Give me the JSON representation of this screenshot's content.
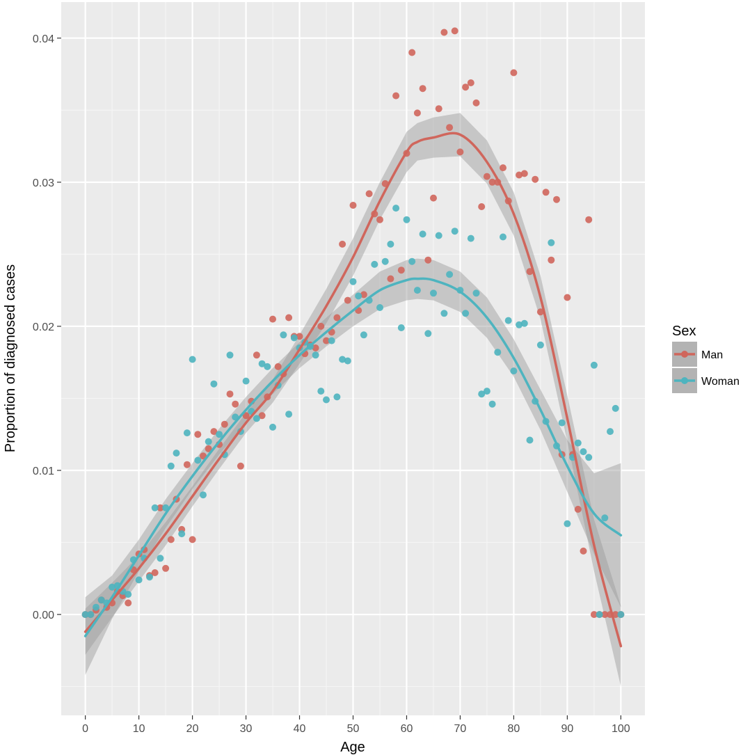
{
  "chart_data": {
    "type": "scatter",
    "xlabel": "Age",
    "ylabel": "Proportion of diagnosed cases",
    "xlim": [
      -4.5,
      104.5
    ],
    "ylim": [
      -0.007,
      0.0425
    ],
    "x_ticks": [
      0,
      10,
      20,
      30,
      40,
      50,
      60,
      70,
      80,
      90,
      100
    ],
    "x_tick_labels": [
      "0",
      "10",
      "20",
      "30",
      "40",
      "50",
      "60",
      "70",
      "80",
      "90",
      "100"
    ],
    "y_ticks": [
      0.0,
      0.01,
      0.02,
      0.03,
      0.04
    ],
    "y_tick_labels": [
      "0.00",
      "0.01",
      "0.02",
      "0.03",
      "0.04"
    ],
    "grid": true,
    "background": "#ebebeb",
    "legend": {
      "title": "Sex",
      "position": "right",
      "entries": [
        "Man",
        "Woman"
      ]
    },
    "series": [
      {
        "name": "Man",
        "color": "#d0665c",
        "points": [
          [
            0,
            0.0
          ],
          [
            1,
            0.0
          ],
          [
            2,
            0.0003
          ],
          [
            3,
            0.001
          ],
          [
            4,
            0.0005
          ],
          [
            5,
            0.0008
          ],
          [
            6,
            0.0016
          ],
          [
            7,
            0.0013
          ],
          [
            8,
            0.0008
          ],
          [
            9,
            0.0031
          ],
          [
            10,
            0.0042
          ],
          [
            11,
            0.0045
          ],
          [
            12,
            0.0027
          ],
          [
            13,
            0.0029
          ],
          [
            14,
            0.0074
          ],
          [
            15,
            0.0032
          ],
          [
            16,
            0.0052
          ],
          [
            17,
            0.008
          ],
          [
            18,
            0.0059
          ],
          [
            19,
            0.0104
          ],
          [
            20,
            0.0052
          ],
          [
            21,
            0.0125
          ],
          [
            22,
            0.011
          ],
          [
            23,
            0.0115
          ],
          [
            24,
            0.0127
          ],
          [
            25,
            0.0118
          ],
          [
            26,
            0.0132
          ],
          [
            27,
            0.0153
          ],
          [
            28,
            0.0146
          ],
          [
            29,
            0.0103
          ],
          [
            30,
            0.0138
          ],
          [
            31,
            0.0148
          ],
          [
            32,
            0.018
          ],
          [
            33,
            0.0138
          ],
          [
            34,
            0.0151
          ],
          [
            35,
            0.0205
          ],
          [
            36,
            0.0172
          ],
          [
            37,
            0.0167
          ],
          [
            38,
            0.0206
          ],
          [
            39,
            0.0193
          ],
          [
            40,
            0.0193
          ],
          [
            41,
            0.0181
          ],
          [
            42,
            0.0187
          ],
          [
            43,
            0.0185
          ],
          [
            44,
            0.02
          ],
          [
            45,
            0.019
          ],
          [
            46,
            0.0196
          ],
          [
            47,
            0.0206
          ],
          [
            48,
            0.0257
          ],
          [
            49,
            0.0218
          ],
          [
            50,
            0.0284
          ],
          [
            51,
            0.0211
          ],
          [
            52,
            0.0222
          ],
          [
            53,
            0.0292
          ],
          [
            54,
            0.0278
          ],
          [
            55,
            0.0274
          ],
          [
            56,
            0.0299
          ],
          [
            57,
            0.0233
          ],
          [
            58,
            0.036
          ],
          [
            59,
            0.0239
          ],
          [
            60,
            0.032
          ],
          [
            61,
            0.039
          ],
          [
            62,
            0.0348
          ],
          [
            63,
            0.0365
          ],
          [
            64,
            0.0246
          ],
          [
            65,
            0.0289
          ],
          [
            66,
            0.0351
          ],
          [
            67,
            0.0404
          ],
          [
            68,
            0.0338
          ],
          [
            69,
            0.0405
          ],
          [
            70,
            0.0321
          ],
          [
            71,
            0.0366
          ],
          [
            72,
            0.0369
          ],
          [
            73,
            0.0355
          ],
          [
            74,
            0.0283
          ],
          [
            75,
            0.0304
          ],
          [
            76,
            0.03
          ],
          [
            77,
            0.03
          ],
          [
            78,
            0.031
          ],
          [
            79,
            0.0287
          ],
          [
            80,
            0.0376
          ],
          [
            81,
            0.0305
          ],
          [
            82,
            0.0306
          ],
          [
            83,
            0.0238
          ],
          [
            84,
            0.0302
          ],
          [
            85,
            0.021
          ],
          [
            86,
            0.0293
          ],
          [
            87,
            0.0246
          ],
          [
            88,
            0.0288
          ],
          [
            89,
            0.0111
          ],
          [
            90,
            0.022
          ],
          [
            91,
            0.0111
          ],
          [
            92,
            0.0073
          ],
          [
            93,
            0.0044
          ],
          [
            94,
            0.0274
          ],
          [
            95,
            0.0
          ],
          [
            96,
            0.0
          ],
          [
            97,
            0.0
          ],
          [
            98,
            0.0
          ],
          [
            99,
            0.0
          ],
          [
            100,
            0.0
          ]
        ],
        "smooth": {
          "x": [
            0,
            5,
            10,
            15,
            20,
            25,
            30,
            35,
            40,
            45,
            50,
            55,
            60,
            62,
            65,
            70,
            75,
            80,
            85,
            90,
            95,
            100
          ],
          "y": [
            -0.0012,
            0.001,
            0.0032,
            0.0056,
            0.0082,
            0.0108,
            0.0133,
            0.0155,
            0.0184,
            0.0214,
            0.0248,
            0.0287,
            0.0321,
            0.0328,
            0.0331,
            0.0333,
            0.0314,
            0.0278,
            0.022,
            0.0136,
            0.0048,
            -0.0022
          ],
          "lo": [
            -0.0028,
            -0.0002,
            0.0023,
            0.0048,
            0.0075,
            0.0101,
            0.0126,
            0.0147,
            0.0174,
            0.0202,
            0.0235,
            0.0274,
            0.0307,
            0.0315,
            0.0317,
            0.0318,
            0.0299,
            0.0263,
            0.0205,
            0.012,
            0.003,
            -0.005
          ],
          "hi": [
            0.0004,
            0.0022,
            0.0041,
            0.0064,
            0.0089,
            0.0115,
            0.014,
            0.0163,
            0.0194,
            0.0226,
            0.0261,
            0.03,
            0.0335,
            0.0341,
            0.0345,
            0.0348,
            0.0329,
            0.0293,
            0.0235,
            0.0152,
            0.0066,
            0.0006
          ]
        }
      },
      {
        "name": "Woman",
        "color": "#4eb4bf",
        "points": [
          [
            0,
            0.0
          ],
          [
            1,
            0.0
          ],
          [
            2,
            0.0005
          ],
          [
            3,
            0.001
          ],
          [
            4,
            0.0008
          ],
          [
            5,
            0.0019
          ],
          [
            6,
            0.002
          ],
          [
            7,
            0.0016
          ],
          [
            8,
            0.0014
          ],
          [
            9,
            0.0038
          ],
          [
            10,
            0.0024
          ],
          [
            11,
            0.0039
          ],
          [
            12,
            0.0026
          ],
          [
            13,
            0.0074
          ],
          [
            14,
            0.0039
          ],
          [
            15,
            0.0074
          ],
          [
            16,
            0.0103
          ],
          [
            17,
            0.0112
          ],
          [
            18,
            0.0056
          ],
          [
            19,
            0.0126
          ],
          [
            20,
            0.0177
          ],
          [
            21,
            0.0107
          ],
          [
            22,
            0.0083
          ],
          [
            23,
            0.012
          ],
          [
            24,
            0.016
          ],
          [
            25,
            0.0125
          ],
          [
            26,
            0.0111
          ],
          [
            27,
            0.018
          ],
          [
            28,
            0.0137
          ],
          [
            29,
            0.0127
          ],
          [
            30,
            0.0162
          ],
          [
            31,
            0.0141
          ],
          [
            32,
            0.0136
          ],
          [
            33,
            0.0174
          ],
          [
            34,
            0.0172
          ],
          [
            35,
            0.013
          ],
          [
            36,
            0.0159
          ],
          [
            37,
            0.0194
          ],
          [
            38,
            0.0139
          ],
          [
            39,
            0.0192
          ],
          [
            40,
            0.0185
          ],
          [
            41,
            0.0189
          ],
          [
            42,
            0.0186
          ],
          [
            43,
            0.018
          ],
          [
            44,
            0.0155
          ],
          [
            45,
            0.0149
          ],
          [
            46,
            0.019
          ],
          [
            47,
            0.0151
          ],
          [
            48,
            0.0177
          ],
          [
            49,
            0.0176
          ],
          [
            50,
            0.0231
          ],
          [
            51,
            0.0221
          ],
          [
            52,
            0.0194
          ],
          [
            53,
            0.0218
          ],
          [
            54,
            0.0243
          ],
          [
            55,
            0.0213
          ],
          [
            56,
            0.0245
          ],
          [
            57,
            0.0257
          ],
          [
            58,
            0.0282
          ],
          [
            59,
            0.0199
          ],
          [
            60,
            0.0274
          ],
          [
            61,
            0.0245
          ],
          [
            62,
            0.0225
          ],
          [
            63,
            0.0264
          ],
          [
            64,
            0.0195
          ],
          [
            65,
            0.0223
          ],
          [
            66,
            0.0263
          ],
          [
            67,
            0.0209
          ],
          [
            68,
            0.0236
          ],
          [
            69,
            0.0266
          ],
          [
            70,
            0.0225
          ],
          [
            71,
            0.0209
          ],
          [
            72,
            0.0261
          ],
          [
            73,
            0.0223
          ],
          [
            74,
            0.0153
          ],
          [
            75,
            0.0155
          ],
          [
            76,
            0.0146
          ],
          [
            77,
            0.0182
          ],
          [
            78,
            0.0262
          ],
          [
            79,
            0.0204
          ],
          [
            80,
            0.0169
          ],
          [
            81,
            0.0201
          ],
          [
            82,
            0.0202
          ],
          [
            83,
            0.0121
          ],
          [
            84,
            0.0148
          ],
          [
            85,
            0.0187
          ],
          [
            86,
            0.0134
          ],
          [
            87,
            0.0258
          ],
          [
            88,
            0.0117
          ],
          [
            89,
            0.0133
          ],
          [
            90,
            0.0063
          ],
          [
            91,
            0.0109
          ],
          [
            92,
            0.0119
          ],
          [
            93,
            0.0113
          ],
          [
            94,
            0.0109
          ],
          [
            95,
            0.0173
          ],
          [
            96,
            0.0
          ],
          [
            97,
            0.0067
          ],
          [
            98,
            0.0127
          ],
          [
            99,
            0.0143
          ],
          [
            100,
            0.0
          ]
        ],
        "smooth": {
          "x": [
            0,
            5,
            10,
            15,
            20,
            25,
            30,
            35,
            40,
            45,
            50,
            55,
            60,
            62,
            65,
            70,
            75,
            80,
            85,
            90,
            95,
            100
          ],
          "y": [
            -0.0015,
            0.0012,
            0.0041,
            0.007,
            0.0096,
            0.012,
            0.0142,
            0.0162,
            0.018,
            0.0196,
            0.0211,
            0.0225,
            0.0232,
            0.0233,
            0.0232,
            0.0224,
            0.0206,
            0.0178,
            0.0142,
            0.0103,
            0.007,
            0.0055
          ],
          "lo": [
            -0.0042,
            -0.0003,
            0.003,
            0.006,
            0.0087,
            0.0111,
            0.0133,
            0.0153,
            0.0171,
            0.0186,
            0.02,
            0.0212,
            0.0218,
            0.0219,
            0.0218,
            0.021,
            0.0192,
            0.0165,
            0.0128,
            0.0085,
            0.0042,
            0.0005
          ],
          "hi": [
            0.0012,
            0.0027,
            0.0052,
            0.008,
            0.0105,
            0.0129,
            0.0151,
            0.0171,
            0.0189,
            0.0206,
            0.0222,
            0.0238,
            0.0246,
            0.0247,
            0.0246,
            0.0238,
            0.022,
            0.0191,
            0.0156,
            0.0121,
            0.0098,
            0.0105
          ]
        }
      }
    ]
  }
}
